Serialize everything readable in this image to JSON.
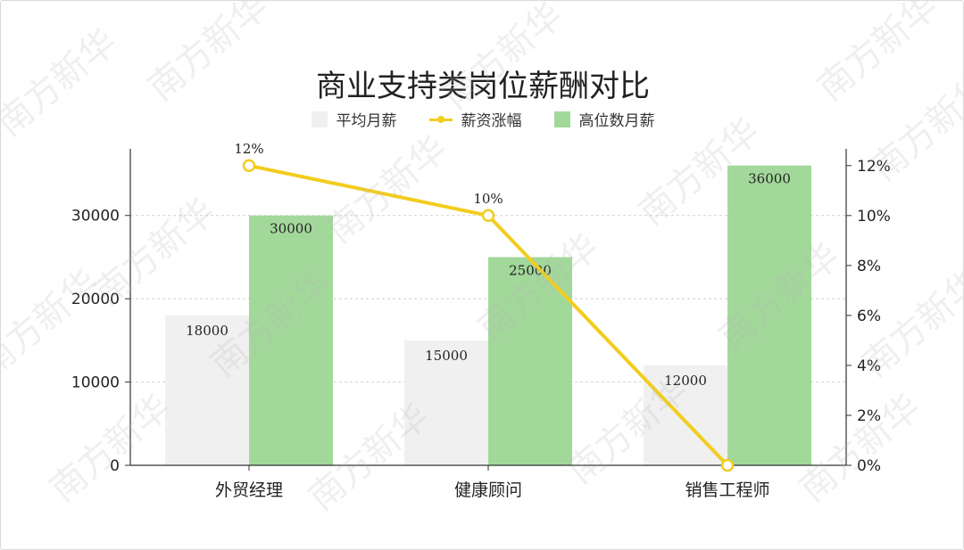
{
  "watermark": "南方新华",
  "colors": {
    "avg_bar": "#f0f0f0",
    "high_bar": "#a3d89b",
    "line": "#f2cd1f",
    "axis": "#333333",
    "grid": "#d0d0d0"
  },
  "chart_data": {
    "type": "bar",
    "title": "商业支持类岗位薪酬对比",
    "categories": [
      "外贸经理",
      "健康顾问",
      "销售工程师"
    ],
    "series": [
      {
        "name": "平均月薪",
        "type": "bar",
        "axis": "left",
        "values": [
          18000,
          15000,
          12000
        ],
        "labels": [
          "18000",
          "15000",
          "12000"
        ]
      },
      {
        "name": "薪资涨幅",
        "type": "line",
        "axis": "right",
        "values": [
          0.12,
          0.1,
          0
        ],
        "labels": [
          "12%",
          "10%",
          ""
        ]
      },
      {
        "name": "高位数月薪",
        "type": "bar",
        "axis": "left",
        "values": [
          30000,
          25000,
          36000
        ],
        "labels": [
          "30000",
          "25000",
          "36000"
        ]
      }
    ],
    "left_axis": {
      "ylim": [
        0,
        38000
      ],
      "ticks": [
        "0",
        "10000",
        "20000",
        "30000"
      ]
    },
    "right_axis": {
      "ylim": [
        0,
        0.1267
      ],
      "ticks": [
        "0%",
        "2%",
        "4%",
        "6%",
        "8%",
        "10%",
        "12%"
      ]
    },
    "grid": true,
    "legend": "top-center"
  }
}
